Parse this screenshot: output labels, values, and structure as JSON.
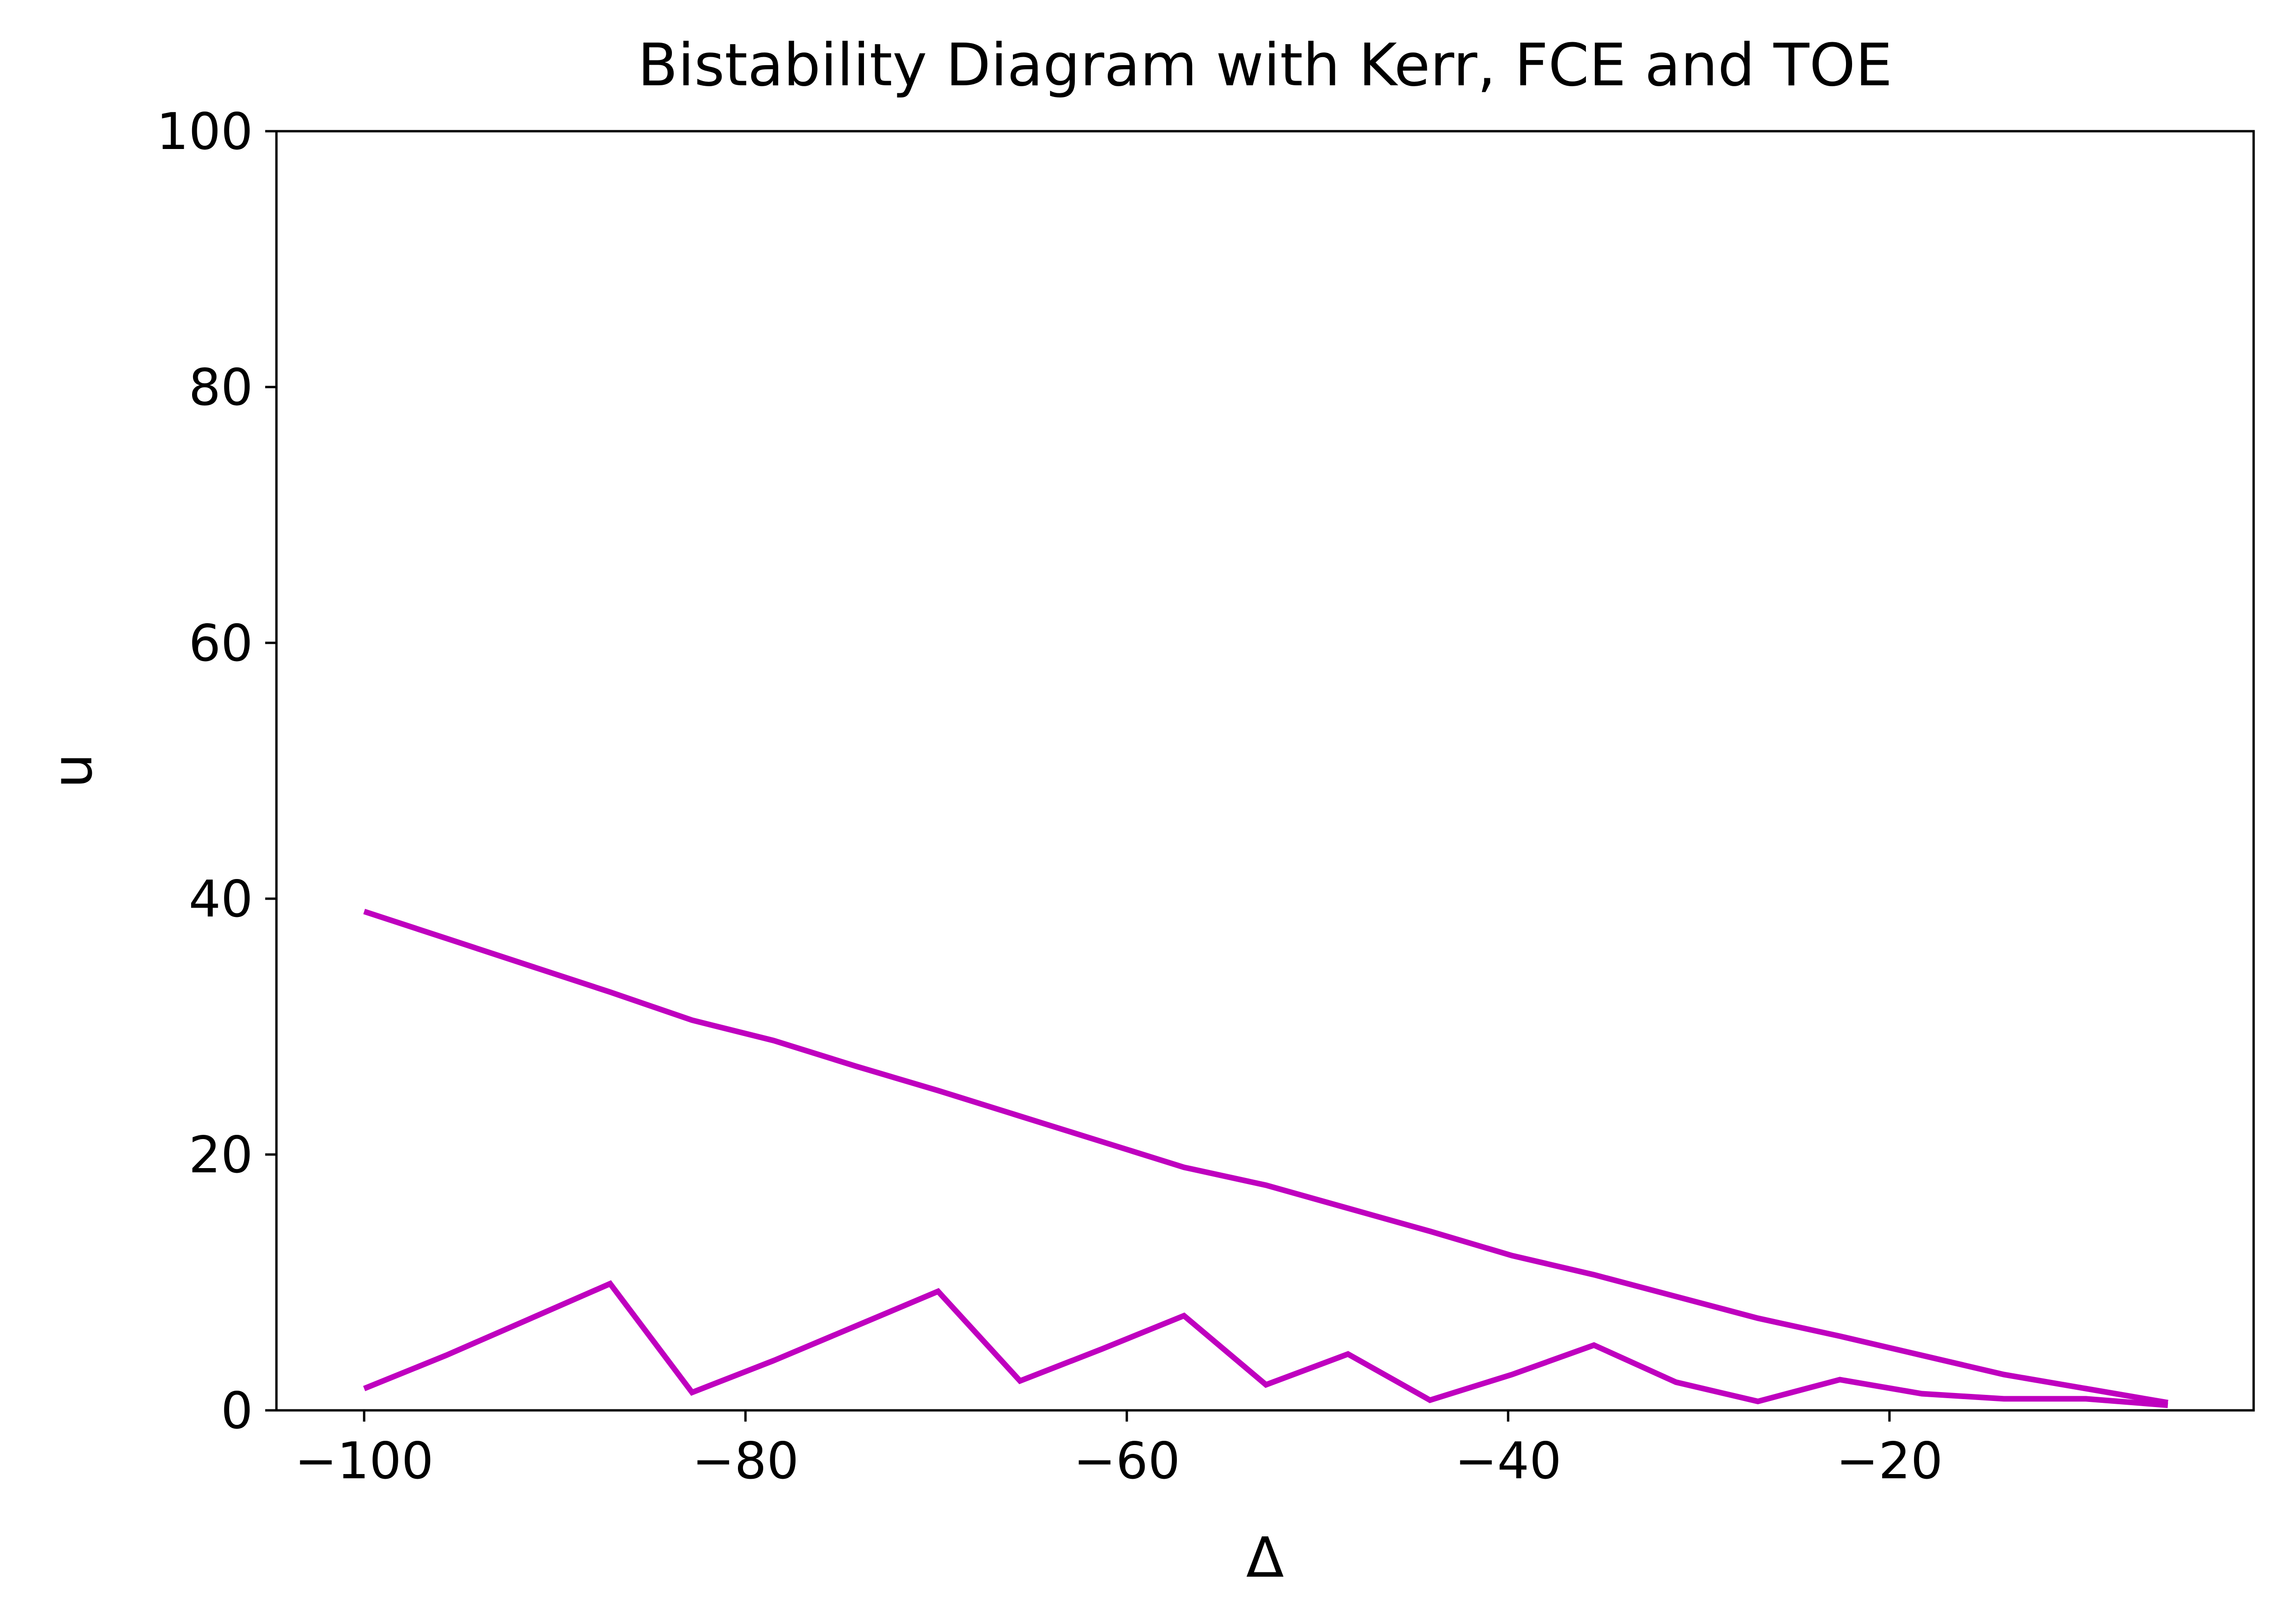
{
  "chart_data": {
    "type": "line",
    "title": "Bistability Diagram with Kerr, FCE and TOE",
    "xlabel": "Δ",
    "ylabel": "u",
    "xlim": [
      -104.6,
      -0.9
    ],
    "ylim": [
      0,
      100
    ],
    "xticks": [
      -100,
      -80,
      -60,
      -40,
      -20
    ],
    "xtick_labels": [
      "−100",
      "−80",
      "−60",
      "−40",
      "−20"
    ],
    "yticks": [
      0,
      20,
      40,
      60,
      80,
      100
    ],
    "ytick_labels": [
      "0",
      "20",
      "40",
      "60",
      "80",
      "100"
    ],
    "grid": false,
    "legend": "none",
    "series": [
      {
        "color": "#bf00bf",
        "x": [
          -100,
          -95.7,
          -91.4,
          -87.1,
          -82.8,
          -78.5,
          -74.2,
          -69.9,
          -65.6,
          -61.3,
          -57.0,
          -52.7,
          -48.4,
          -44.1,
          -39.8,
          -35.5,
          -31.2,
          -26.9,
          -22.6,
          -18.3,
          -14.0,
          -9.7,
          -5.4
        ],
        "values": [
          39.0,
          36.9,
          34.8,
          32.7,
          30.5,
          28.9,
          26.9,
          25.0,
          23.0,
          21.0,
          19.0,
          17.6,
          15.8,
          14.0,
          12.1,
          10.6,
          8.9,
          7.2,
          5.8,
          4.3,
          2.8,
          1.7,
          0.6
        ]
      },
      {
        "color": "#bf00bf",
        "x": [
          -100,
          -95.7,
          -91.4,
          -87.1,
          -82.8,
          -78.5,
          -74.2,
          -69.9,
          -65.6,
          -61.3,
          -57.0,
          -52.7,
          -48.4,
          -44.1,
          -39.8,
          -35.5,
          -31.2,
          -26.9,
          -22.6,
          -18.3,
          -14.0,
          -9.7,
          -5.4
        ],
        "values": [
          1.7,
          4.3,
          7.1,
          9.9,
          1.4,
          3.9,
          6.6,
          9.3,
          2.3,
          4.8,
          7.4,
          2.0,
          4.4,
          0.8,
          2.8,
          5.1,
          2.2,
          0.7,
          2.4,
          1.3,
          0.9,
          0.9,
          0.4
        ]
      }
    ]
  }
}
